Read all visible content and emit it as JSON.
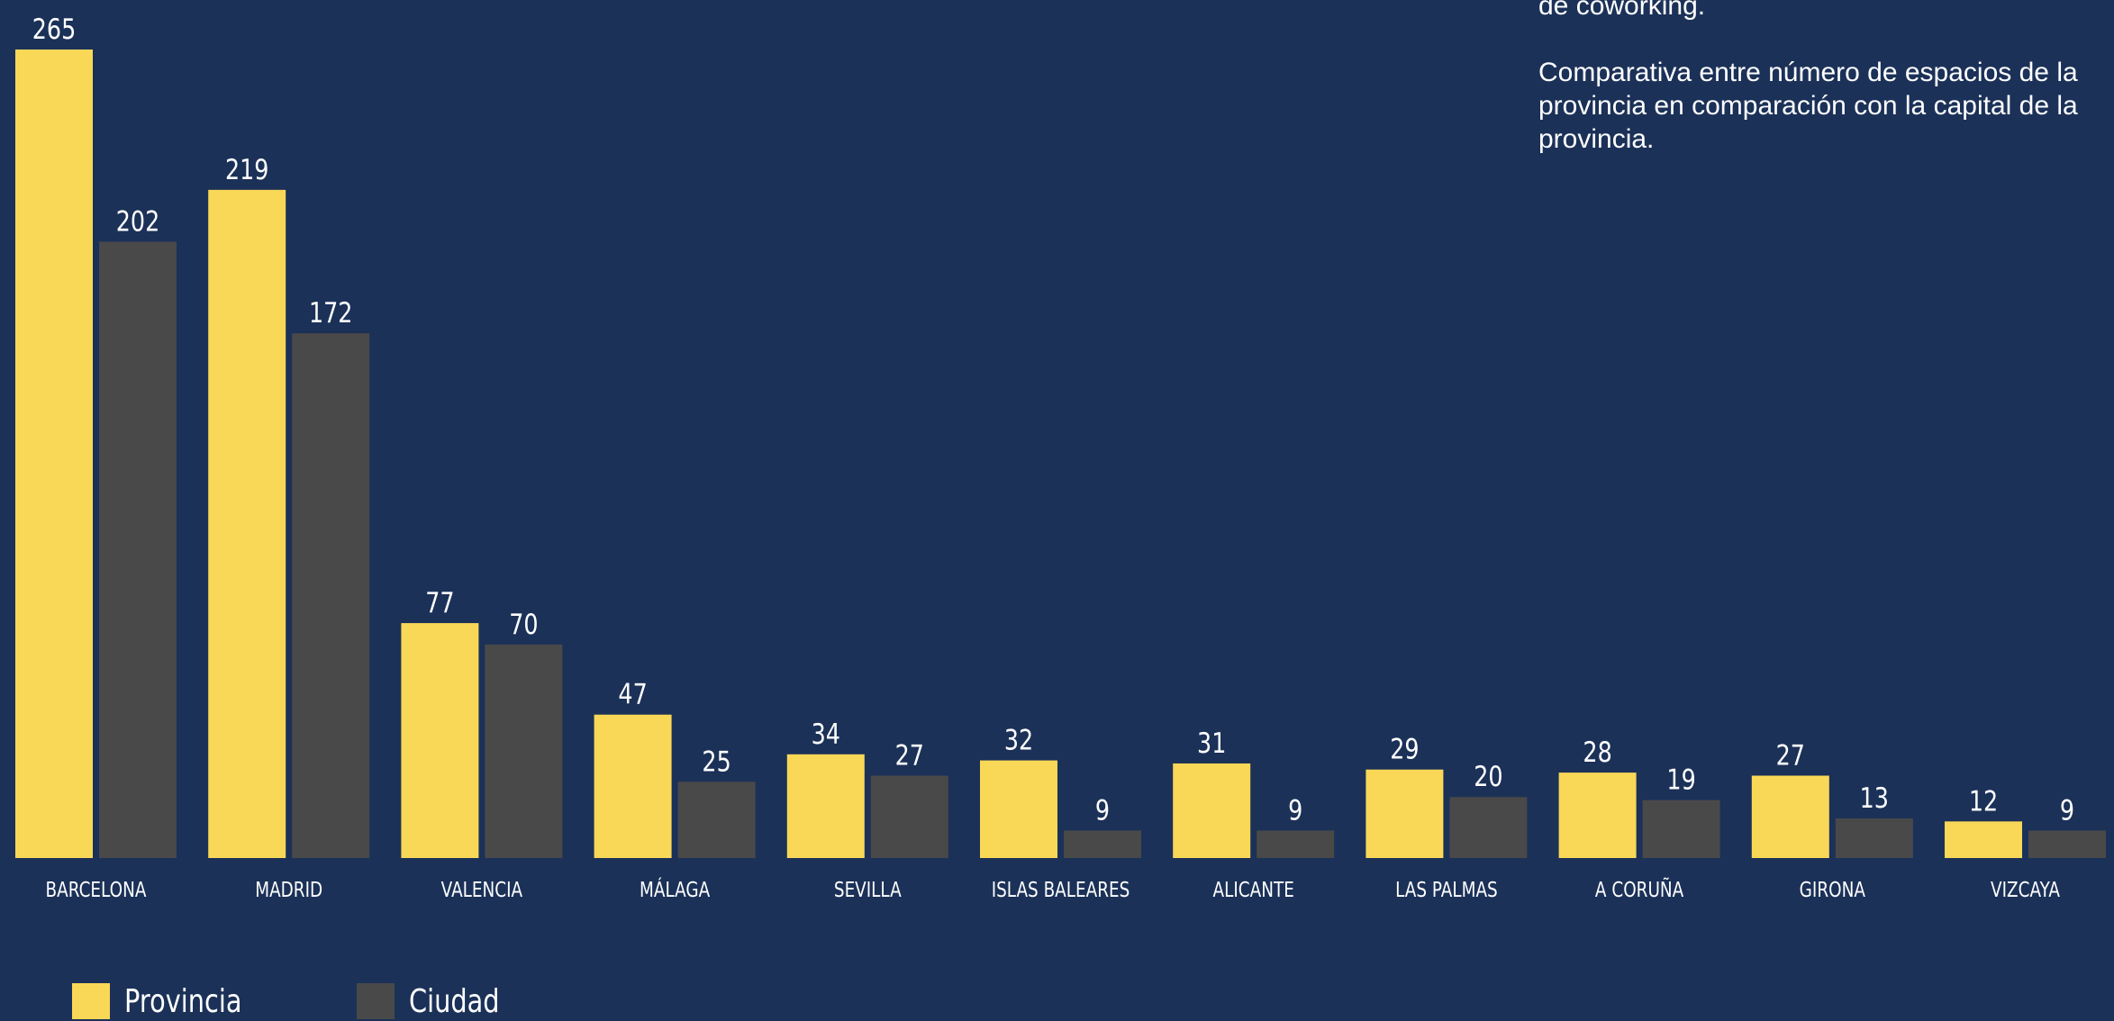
{
  "description": {
    "line1": "de coworking.",
    "line2": "Comparativa entre número de espacios de la provincia en comparación con la capital de la provincia."
  },
  "colors": {
    "background": "#1b3158",
    "provincia": "#f9d857",
    "ciudad": "#494949",
    "text": "#ffffff"
  },
  "chart_data": {
    "type": "bar",
    "categories": [
      "BARCELONA",
      "MADRID",
      "VALENCIA",
      "MÁLAGA",
      "SEVILLA",
      "ISLAS BALEARES",
      "ALICANTE",
      "LAS PALMAS",
      "A CORUÑA",
      "GIRONA",
      "VIZCAYA"
    ],
    "series": [
      {
        "name": "Provincia",
        "values": [
          265,
          219,
          77,
          47,
          34,
          32,
          31,
          29,
          28,
          27,
          12
        ]
      },
      {
        "name": "Ciudad",
        "values": [
          202,
          172,
          70,
          25,
          27,
          9,
          9,
          20,
          19,
          13,
          9
        ]
      }
    ],
    "ylim": [
      0,
      265
    ],
    "grid": false,
    "legend_position": "bottom-left"
  },
  "legend": [
    {
      "label": "Provincia",
      "color": "#f9d857"
    },
    {
      "label": "Ciudad",
      "color": "#494949"
    }
  ]
}
